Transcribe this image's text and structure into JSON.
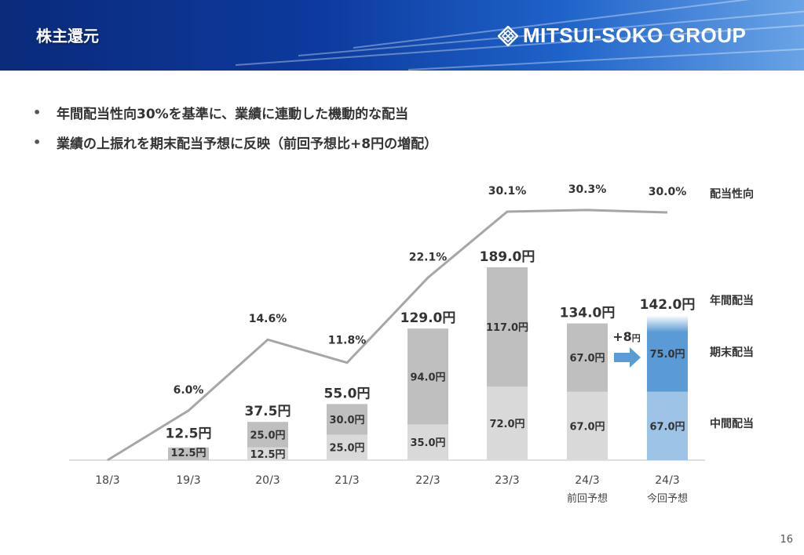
{
  "header": {
    "title": "株主還元",
    "logo_text": "MITSUI-SOKO GROUP"
  },
  "bullets": [
    "年間配当性向30%を基準に、業績に連動した機動的な配当",
    "業績の上振れを期末配当予想に反映（前回予想比+8円の増配）"
  ],
  "page_number": "16",
  "colors": {
    "interim": "#d9d9d9",
    "final": "#bfbfbf",
    "forecast_interim": "#9dc3e6",
    "forecast_final": "#5b9bd5",
    "payout_line": "#a6a6a6"
  },
  "chart_data": {
    "type": "bar",
    "stacked": true,
    "categories": [
      "18/3",
      "19/3",
      "20/3",
      "21/3",
      "22/3",
      "23/3",
      "24/3",
      "24/3"
    ],
    "category_sublabels": [
      "",
      "",
      "",
      "",
      "",
      "",
      "前回予想",
      "今回予想"
    ],
    "series": [
      {
        "name": "中間配当",
        "values": [
          0,
          0,
          12.5,
          25.0,
          35.0,
          72.0,
          67.0,
          67.0
        ],
        "labels": [
          "",
          "",
          "12.5円",
          "25.0円",
          "35.0円",
          "72.0円",
          "67.0円",
          "67.0円"
        ]
      },
      {
        "name": "期末配当",
        "values": [
          0,
          12.5,
          25.0,
          30.0,
          94.0,
          117.0,
          67.0,
          75.0
        ],
        "labels": [
          "",
          "12.5円",
          "25.0円",
          "30.0円",
          "94.0円",
          "117.0円",
          "67.0円",
          "75.0円"
        ]
      }
    ],
    "totals": {
      "name": "年間配当",
      "values": [
        0,
        12.5,
        37.5,
        55.0,
        129.0,
        189.0,
        134.0,
        142.0
      ],
      "labels": [
        "",
        "12.5円",
        "37.5円",
        "55.0円",
        "129.0円",
        "189.0円",
        "134.0円",
        "142.0円"
      ]
    },
    "payout_ratio": {
      "name": "配当性向",
      "values": [
        0,
        6.0,
        14.6,
        11.8,
        22.1,
        30.1,
        30.3,
        30.0
      ],
      "labels": [
        "",
        "6.0%",
        "14.6%",
        "11.8%",
        "22.1%",
        "30.1%",
        "30.3%",
        "30.0%"
      ]
    },
    "annotation": {
      "text": "+8",
      "unit": "円"
    },
    "legend_right": [
      "配当性向",
      "年間配当",
      "期末配当",
      "中間配当"
    ]
  }
}
